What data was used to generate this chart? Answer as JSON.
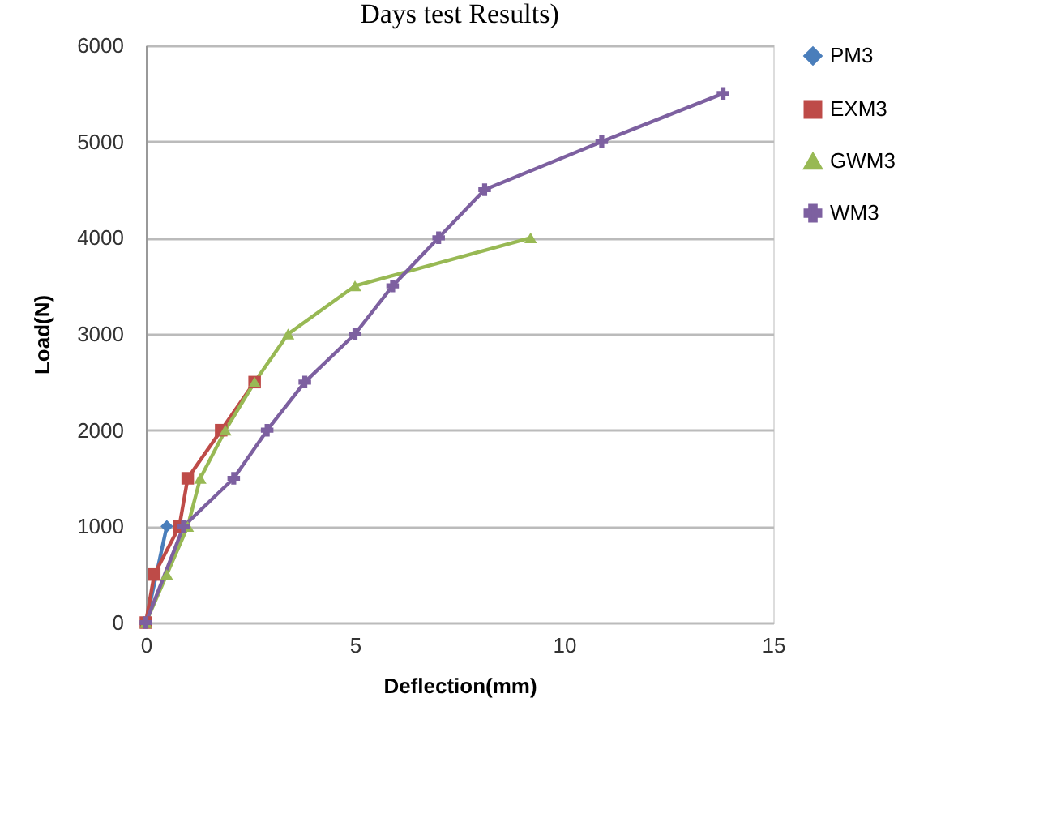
{
  "chart_data": {
    "type": "line",
    "title": "Days test Results)",
    "xlabel": "Deflection(mm)",
    "ylabel": "Load(N)",
    "xlim": [
      0,
      15
    ],
    "xticks": [
      0,
      5,
      10,
      15
    ],
    "ylim": [
      0,
      6000
    ],
    "yticks": [
      0,
      1000,
      2000,
      3000,
      4000,
      5000,
      6000
    ],
    "grid": "y",
    "legend": "right",
    "line_style": "solid",
    "series": [
      {
        "name": "PM3",
        "color": "#4a7ebb",
        "marker": "diamond",
        "x": [
          0,
          0.5
        ],
        "values": [
          0,
          1000
        ]
      },
      {
        "name": "EXM3",
        "color": "#be4b48",
        "marker": "square",
        "x": [
          0,
          0.2,
          0.8,
          1,
          1.8,
          2.6
        ],
        "values": [
          0,
          500,
          1000,
          1500,
          2000,
          2500
        ]
      },
      {
        "name": "GWM3",
        "color": "#98b954",
        "marker": "triangle",
        "x": [
          0,
          0.5,
          1,
          1.3,
          1.9,
          2.6,
          3.4,
          5,
          9.2
        ],
        "values": [
          0,
          500,
          1000,
          1500,
          2000,
          2500,
          3000,
          3500,
          4000
        ]
      },
      {
        "name": "WM3",
        "color": "#7d60a0",
        "marker": "cross",
        "x": [
          0,
          0.9,
          2.1,
          2.9,
          3.8,
          5,
          5.9,
          7,
          8.1,
          10.9,
          13.8
        ],
        "values": [
          0,
          1000,
          1500,
          2000,
          2500,
          3000,
          3500,
          4000,
          4500,
          5000,
          5500
        ]
      }
    ]
  }
}
